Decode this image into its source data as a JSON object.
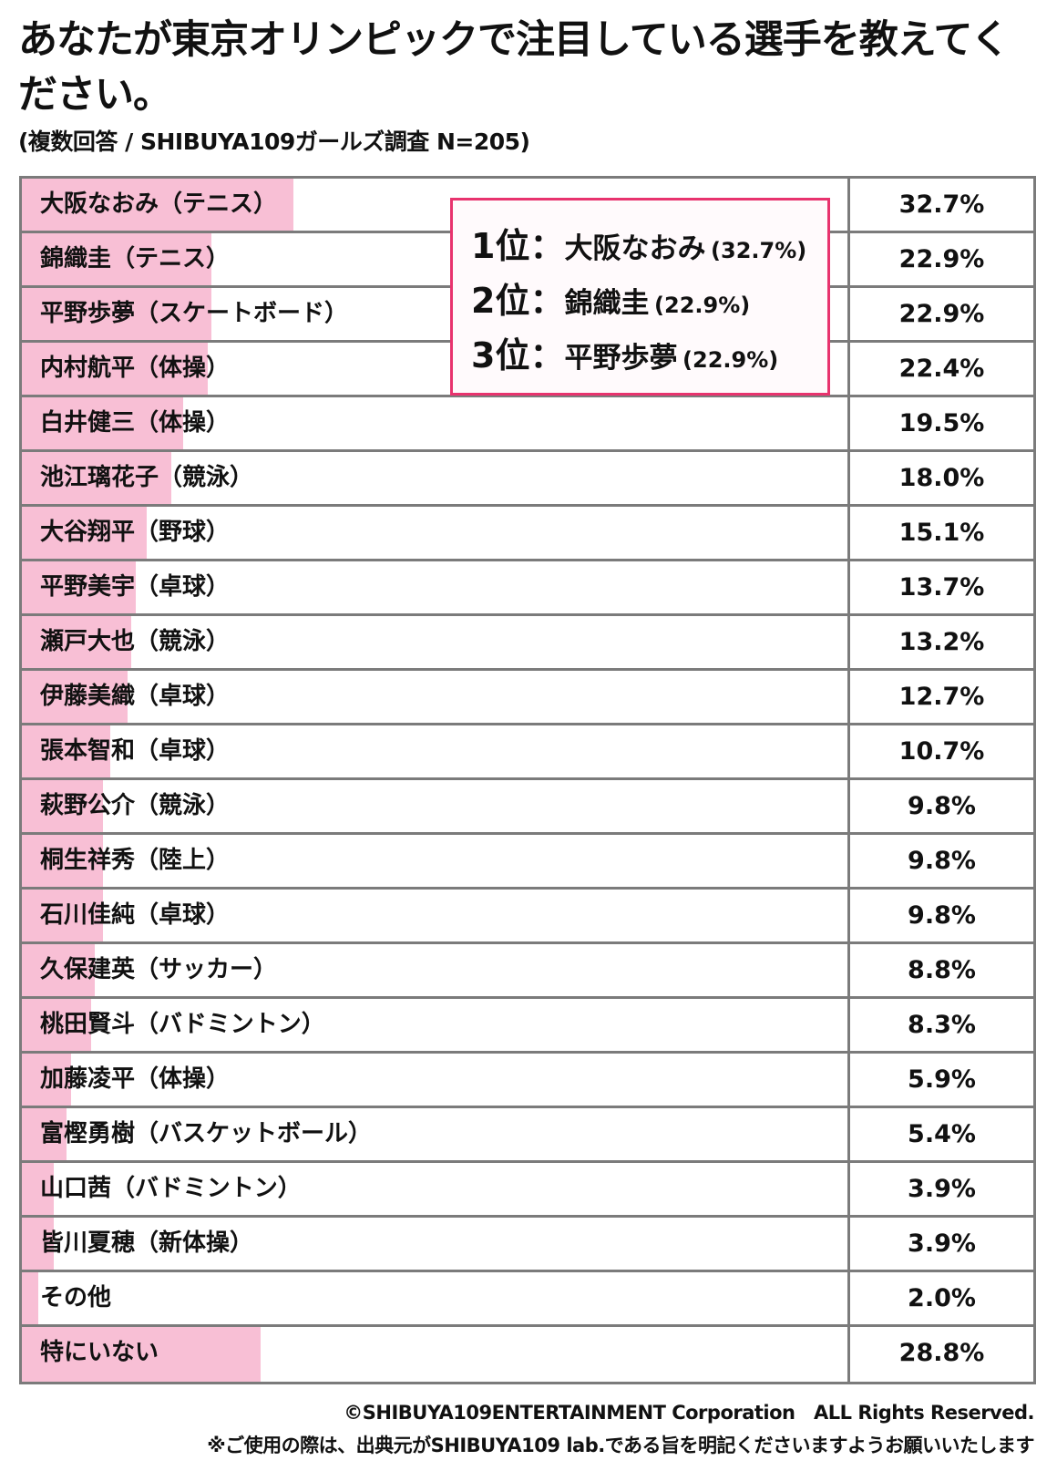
{
  "title": "あなたが東京オリンピックで注目している選手を教えてください。",
  "subtitle": "(複数回答 / SHIBUYA109ガールズ調査 N=205)",
  "chart_data": {
    "type": "bar",
    "orientation": "horizontal",
    "title": "あなたが東京オリンピックで注目している選手を教えてください。",
    "categories": [
      "大阪なおみ（テニス）",
      "錦織圭（テニス）",
      "平野歩夢（スケートボード）",
      "内村航平（体操）",
      "白井健三（体操）",
      "池江璃花子（競泳）",
      "大谷翔平（野球）",
      "平野美宇（卓球）",
      "瀬戸大也（競泳）",
      "伊藤美織（卓球）",
      "張本智和（卓球）",
      "萩野公介（競泳）",
      "桐生祥秀（陸上）",
      "石川佳純（卓球）",
      "久保建英（サッカー）",
      "桃田賢斗（バドミントン）",
      "加藤凌平（体操）",
      "富樫勇樹（バスケットボール）",
      "山口茜（バドミントン）",
      "皆川夏穂（新体操）",
      "その他",
      "特にいない"
    ],
    "values": [
      32.7,
      22.9,
      22.9,
      22.4,
      19.5,
      18.0,
      15.1,
      13.7,
      13.2,
      12.7,
      10.7,
      9.8,
      9.8,
      9.8,
      8.8,
      8.3,
      5.9,
      5.4,
      3.9,
      3.9,
      2.0,
      28.8
    ],
    "value_labels": [
      "32.7%",
      "22.9%",
      "22.9%",
      "22.4%",
      "19.5%",
      "18.0%",
      "15.1%",
      "13.7%",
      "13.2%",
      "12.7%",
      "10.7%",
      "9.8%",
      "9.8%",
      "9.8%",
      "8.8%",
      "8.3%",
      "5.9%",
      "5.4%",
      "3.9%",
      "3.9%",
      "2.0%",
      "28.8%"
    ],
    "unit": "%",
    "bar_color": "#f8bfd5",
    "grid": false
  },
  "callout": {
    "border_color": "#e8336e",
    "items": [
      {
        "rank": "1位：",
        "name": "大阪なおみ",
        "pct": "(32.7%)"
      },
      {
        "rank": "2位：",
        "name": "錦織圭",
        "pct": "(22.9%)"
      },
      {
        "rank": "3位：",
        "name": "平野歩夢",
        "pct": "(22.9%)"
      }
    ]
  },
  "footer": {
    "copyright": "©SHIBUYA109ENTERTAINMENT Corporation　ALL Rights Reserved.",
    "note": "※ご使用の際は、出典元がSHIBUYA109 lab.である旨を明記くださいますようお願いいたします"
  }
}
